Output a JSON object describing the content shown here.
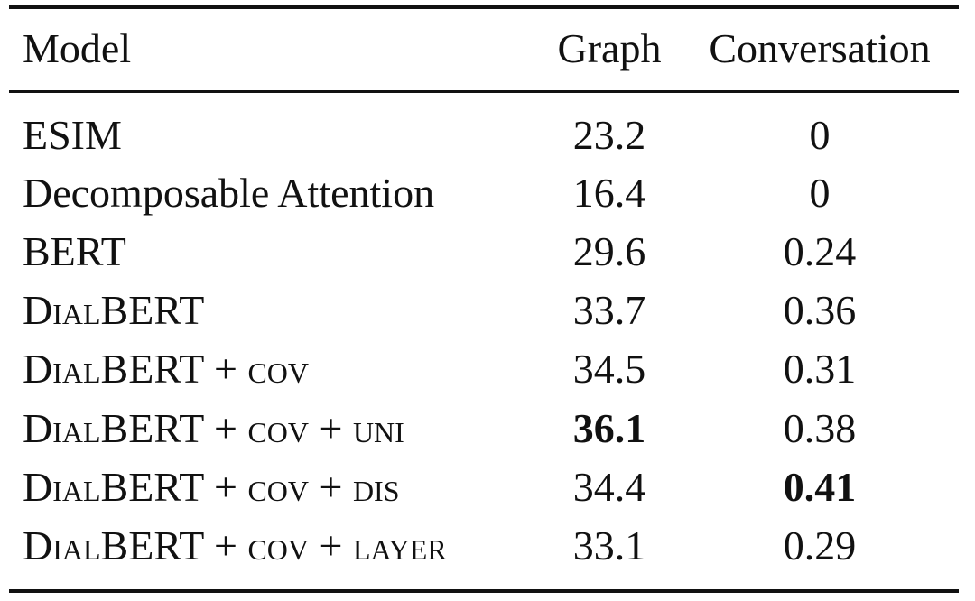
{
  "table": {
    "headers": {
      "model": "Model",
      "graph": "Graph",
      "conversation": "Conversation"
    },
    "rows": [
      {
        "model": "ESIM",
        "graph": "23.2",
        "conversation": "0"
      },
      {
        "model": "Decomposable Attention",
        "graph": "16.4",
        "conversation": "0"
      },
      {
        "model": "BERT",
        "graph": "29.6",
        "conversation": "0.24"
      },
      {
        "model": "DialBERT",
        "graph": "33.7",
        "conversation": "0.36"
      },
      {
        "model": "DialBERT + cov",
        "graph": "34.5",
        "conversation": "0.31"
      },
      {
        "model": "DialBERT + cov + uni",
        "graph": "36.1",
        "conversation": "0.38"
      },
      {
        "model": "DialBERT + cov + dis",
        "graph": "34.4",
        "conversation": "0.41"
      },
      {
        "model": "DialBERT + cov + layer",
        "graph": "33.1",
        "conversation": "0.29"
      }
    ],
    "bold_cells": [
      {
        "row": 5,
        "column": "graph"
      },
      {
        "row": 6,
        "column": "conversation"
      }
    ]
  }
}
